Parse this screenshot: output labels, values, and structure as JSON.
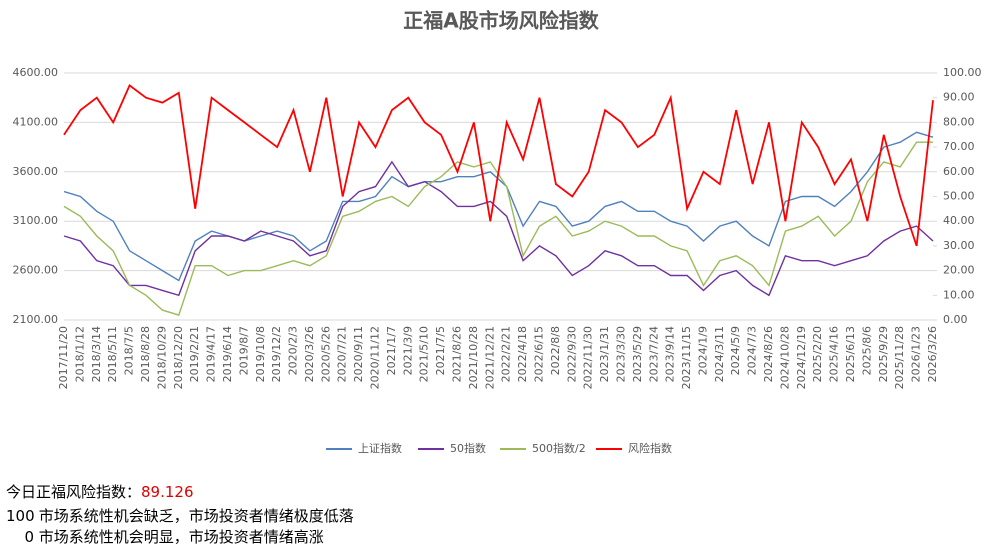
{
  "chart_data": {
    "type": "line",
    "title": "正福A股市场风险指数",
    "categories": [
      "2017/11/20",
      "2018/1/12",
      "2018/3/14",
      "2018/5/11",
      "2018/7/5",
      "2018/8/28",
      "2018/10/29",
      "2018/12/20",
      "2019/2/21",
      "2019/4/17",
      "2019/6/14",
      "2019/8/7",
      "2019/10/8",
      "2019/12/2",
      "2020/2/3",
      "2020/3/26",
      "2020/5/26",
      "2020/7/21",
      "2020/9/11",
      "2020/11/12",
      "2021/1/7",
      "2021/3/9",
      "2021/5/10",
      "2021/7/5",
      "2021/8/26",
      "2021/10/28",
      "2021/12/21",
      "2022/2/21",
      "2022/4/18",
      "2022/6/15",
      "2022/8/8",
      "2022/9/30",
      "2022/11/30",
      "2023/1/31",
      "2023/3/30",
      "2023/5/29",
      "2023/7/24",
      "2023/9/14",
      "2023/11/15",
      "2024/1/9",
      "2024/3/11",
      "2024/5/9",
      "2024/7/3",
      "2024/8/26",
      "2024/10/28",
      "2024/12/19",
      "2025/2/20",
      "2025/4/16",
      "2025/6/13",
      "2025/8/6",
      "2025/9/29",
      "2025/11/28",
      "2026/1/23",
      "2026/3/26"
    ],
    "series": [
      {
        "name": "上证指数",
        "color": "#4f81bd",
        "values": [
          3400,
          3350,
          3200,
          3100,
          2800,
          2700,
          2600,
          2500,
          2900,
          3000,
          2950,
          2900,
          2950,
          3000,
          2950,
          2800,
          2900,
          3300,
          3300,
          3350,
          3550,
          3450,
          3500,
          3500,
          3550,
          3550,
          3600,
          3450,
          3050,
          3300,
          3250,
          3050,
          3100,
          3250,
          3300,
          3200,
          3200,
          3100,
          3050,
          2900,
          3050,
          3100,
          2950,
          2850,
          3300,
          3350,
          3350,
          3250,
          3400,
          3600,
          3850,
          3900,
          4000,
          3950
        ]
      },
      {
        "name": "50指数",
        "color": "#7030a0",
        "values": [
          2950,
          2900,
          2700,
          2650,
          2450,
          2450,
          2400,
          2350,
          2800,
          2950,
          2950,
          2900,
          3000,
          2950,
          2900,
          2750,
          2800,
          3250,
          3400,
          3450,
          3700,
          3450,
          3500,
          3400,
          3250,
          3250,
          3300,
          3150,
          2700,
          2850,
          2750,
          2550,
          2650,
          2800,
          2750,
          2650,
          2650,
          2550,
          2550,
          2400,
          2550,
          2600,
          2450,
          2350,
          2750,
          2700,
          2700,
          2650,
          2700,
          2750,
          2900,
          3000,
          3050,
          2900
        ]
      },
      {
        "name": "500指数/2",
        "color": "#9bbb59",
        "values": [
          3250,
          3150,
          2950,
          2800,
          2450,
          2350,
          2200,
          2150,
          2650,
          2650,
          2550,
          2600,
          2600,
          2650,
          2700,
          2650,
          2750,
          3150,
          3200,
          3300,
          3350,
          3250,
          3450,
          3550,
          3700,
          3650,
          3700,
          3450,
          2750,
          3050,
          3150,
          2950,
          3000,
          3100,
          3050,
          2950,
          2950,
          2850,
          2800,
          2450,
          2700,
          2750,
          2650,
          2450,
          3000,
          3050,
          3150,
          2950,
          3100,
          3500,
          3700,
          3650,
          3900,
          3900
        ]
      },
      {
        "name": "风险指数",
        "color": "#ff0000",
        "axis": "y2",
        "values": [
          75,
          85,
          90,
          80,
          95,
          90,
          88,
          92,
          45,
          90,
          85,
          80,
          75,
          70,
          85,
          60,
          90,
          50,
          80,
          70,
          85,
          90,
          80,
          75,
          60,
          80,
          40,
          80,
          65,
          90,
          55,
          50,
          60,
          85,
          80,
          70,
          75,
          90,
          45,
          60,
          55,
          85,
          55,
          80,
          40,
          80,
          70,
          55,
          65,
          40,
          75,
          50,
          30,
          89
        ]
      }
    ],
    "ylim": [
      2100,
      4600
    ],
    "yticks": [
      {
        "value": 2100,
        "label": "2100.00"
      },
      {
        "value": 2600,
        "label": "2600.00"
      },
      {
        "value": 3100,
        "label": "3100.00"
      },
      {
        "value": 3600,
        "label": "3600.00"
      },
      {
        "value": 4100,
        "label": "4100.00"
      },
      {
        "value": 4600,
        "label": "4600.00"
      }
    ],
    "y2lim": [
      0,
      100
    ],
    "y2ticks": [
      {
        "value": 0,
        "label": "0.00"
      },
      {
        "value": 10,
        "label": "10.00"
      },
      {
        "value": 20,
        "label": "20.00"
      },
      {
        "value": 30,
        "label": "30.00"
      },
      {
        "value": 40,
        "label": "40.00"
      },
      {
        "value": 50,
        "label": "50.00"
      },
      {
        "value": 60,
        "label": "60.00"
      },
      {
        "value": 70,
        "label": "70.00"
      },
      {
        "value": 80,
        "label": "80.00"
      },
      {
        "value": 90,
        "label": "90.00"
      },
      {
        "value": 100,
        "label": "100.00"
      }
    ],
    "grid": true,
    "legend": "bottom"
  },
  "footer": {
    "today_label": "今日正福风险指数：",
    "today_value": "89.126",
    "lines": [
      {
        "level": "100",
        "text": "市场系统性机会缺乏，市场投资者情绪极度低落"
      },
      {
        "level": "0",
        "text": "市场系统性机会明显，市场投资者情绪高涨"
      }
    ]
  }
}
